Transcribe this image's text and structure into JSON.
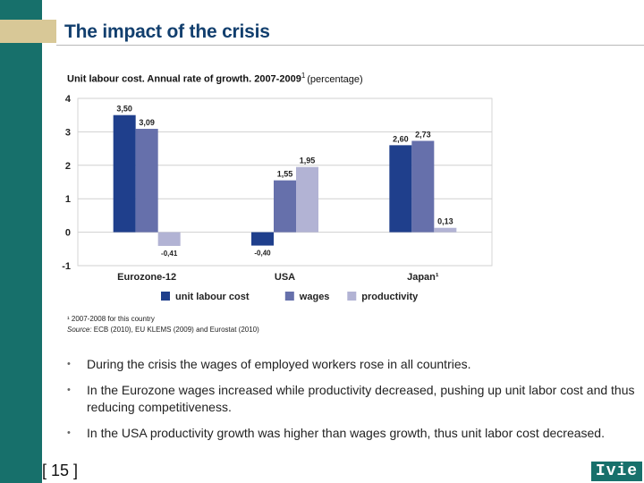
{
  "slide": {
    "title": "The impact of the crisis",
    "subtitle": "Unit labour cost. Annual rate of growth. 2007-2009",
    "subtitle_sup": "1",
    "subtitle_unit": "(percentage)",
    "footnote_line1": "¹ 2007-2008 for this country",
    "source_label": "Source:",
    "source_text": " ECB (2010), EU KLEMS (2009) and Eurostat (2010)",
    "bullets": [
      "During the crisis the wages of employed workers rose in all countries.",
      "In the Eurozone wages increased while productivity decreased, pushing up unit labor cost and thus reducing competitiveness.",
      "In the USA productivity growth was higher than wages growth, thus unit labor cost decreased."
    ],
    "bullet_symbol": "•",
    "page_number": "[ 15 ]",
    "logo_text": "Ivie"
  },
  "colors": {
    "accent_bar": "#17706b",
    "title_accent": "#d8c897",
    "title_text": "#123f6e"
  },
  "chart_data": {
    "type": "bar",
    "categories": [
      "Eurozone-12",
      "USA",
      "Japan¹"
    ],
    "series": [
      {
        "name": "unit labour cost",
        "color": "#1f3f8c",
        "values": [
          3.5,
          -0.4,
          2.6
        ],
        "labels": [
          "3,50",
          "-0,40",
          "2,60"
        ]
      },
      {
        "name": "wages",
        "color": "#6670ab",
        "values": [
          3.09,
          1.55,
          2.73
        ],
        "labels": [
          "3,09",
          "1,55",
          "2,73"
        ]
      },
      {
        "name": "productivity",
        "color": "#b2b3d4",
        "values": [
          -0.41,
          1.95,
          0.13
        ],
        "labels": [
          "-0,41",
          "1,95",
          "0,13"
        ]
      }
    ],
    "yticks": [
      -1,
      0,
      1,
      2,
      3,
      4
    ],
    "ylim": [
      -1,
      4
    ],
    "grid": true,
    "legend_position": "bottom"
  }
}
